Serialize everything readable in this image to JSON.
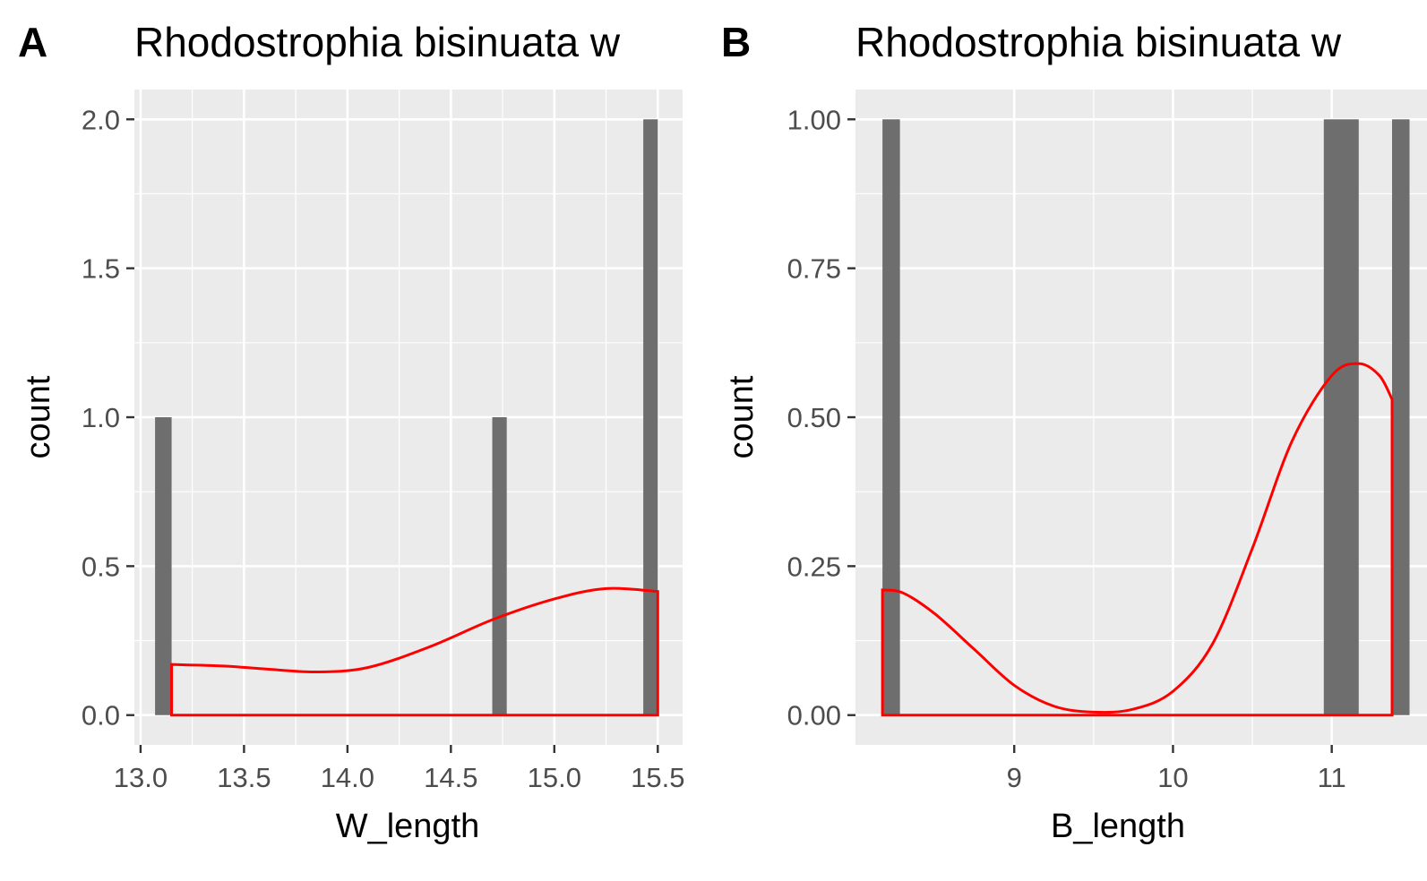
{
  "chart_data": [
    {
      "type": "bar",
      "panel_label": "A",
      "title": "Rhodostrophia bisinuata w",
      "xlabel": "W_length",
      "ylabel": "count",
      "xlim": [
        12.97,
        15.62
      ],
      "ylim": [
        -0.1,
        2.1
      ],
      "x_ticks": [
        13.0,
        13.5,
        14.0,
        14.5,
        15.0,
        15.5
      ],
      "x_tick_labels": [
        "13.0",
        "13.5",
        "14.0",
        "14.5",
        "15.0",
        "15.5"
      ],
      "y_ticks": [
        0,
        0.5,
        1,
        1.5,
        2
      ],
      "y_tick_labels": [
        "0.0",
        "0.5",
        "1.0",
        "1.5",
        "2.0"
      ],
      "bar_color": "#6e6e6e",
      "density_color": "#ff0000",
      "bars": [
        {
          "x0": 13.07,
          "x1": 13.15,
          "count": 1
        },
        {
          "x0": 14.7,
          "x1": 14.77,
          "count": 1
        },
        {
          "x0": 15.43,
          "x1": 15.5,
          "count": 2
        }
      ],
      "density": {
        "x": [
          13.15,
          13.4,
          13.6,
          13.85,
          14.1,
          14.4,
          14.7,
          15.0,
          15.25,
          15.5
        ],
        "y": [
          0.17,
          0.165,
          0.155,
          0.145,
          0.16,
          0.23,
          0.32,
          0.39,
          0.425,
          0.415
        ]
      },
      "grid": true
    },
    {
      "type": "bar",
      "panel_label": "B",
      "title": "Rhodostrophia bisinuata w",
      "xlabel": "B_length",
      "ylabel": "count",
      "xlim": [
        8.0,
        11.6
      ],
      "ylim": [
        -0.05,
        1.05
      ],
      "x_ticks": [
        9,
        10,
        11
      ],
      "x_tick_labels": [
        "9",
        "10",
        "11"
      ],
      "y_ticks": [
        0,
        0.25,
        0.5,
        0.75,
        1
      ],
      "y_tick_labels": [
        "0.00",
        "0.25",
        "0.50",
        "0.75",
        "1.00"
      ],
      "bar_color": "#6e6e6e",
      "density_color": "#ff0000",
      "bars": [
        {
          "x0": 8.17,
          "x1": 8.28,
          "count": 1
        },
        {
          "x0": 10.95,
          "x1": 11.17,
          "count": 1
        },
        {
          "x0": 11.38,
          "x1": 11.49,
          "count": 1
        }
      ],
      "density": {
        "x": [
          8.17,
          8.3,
          8.5,
          8.75,
          9.0,
          9.25,
          9.5,
          9.75,
          10.0,
          10.25,
          10.5,
          10.75,
          11.0,
          11.17,
          11.3,
          11.38
        ],
        "y": [
          0.21,
          0.205,
          0.17,
          0.11,
          0.05,
          0.015,
          0.005,
          0.01,
          0.04,
          0.12,
          0.28,
          0.46,
          0.57,
          0.59,
          0.57,
          0.53
        ]
      },
      "grid": true
    }
  ]
}
